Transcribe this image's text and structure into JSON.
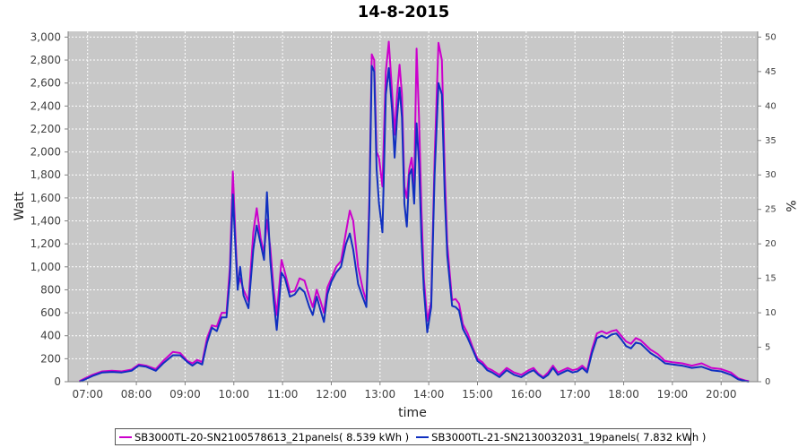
{
  "chart_data": {
    "type": "line",
    "title": "14-8-2015",
    "xlabel": "time",
    "ylabel": "Watt",
    "y2label": "%",
    "ylim": [
      0,
      3050
    ],
    "y2lim": [
      0,
      50.83
    ],
    "xlim": [
      6.6,
      20.75
    ],
    "yticks": [
      "0",
      "200",
      "400",
      "600",
      "800",
      "1,000",
      "1,200",
      "1,400",
      "1,600",
      "1,800",
      "2,000",
      "2,200",
      "2,400",
      "2,600",
      "2,800",
      "3,000"
    ],
    "ytick_values": [
      0,
      200,
      400,
      600,
      800,
      1000,
      1200,
      1400,
      1600,
      1800,
      2000,
      2200,
      2400,
      2600,
      2800,
      3000
    ],
    "y2ticks": [
      "0",
      "5",
      "10",
      "15",
      "20",
      "25",
      "30",
      "35",
      "40",
      "45",
      "50"
    ],
    "y2tick_values": [
      0,
      5,
      10,
      15,
      20,
      25,
      30,
      35,
      40,
      45,
      50
    ],
    "xticks": [
      "07:00",
      "08:00",
      "09:00",
      "10:00",
      "11:00",
      "12:00",
      "13:00",
      "14:00",
      "15:00",
      "16:00",
      "17:00",
      "18:00",
      "19:00",
      "20:00"
    ],
    "xtick_values": [
      7,
      8,
      9,
      10,
      11,
      12,
      13,
      14,
      15,
      16,
      17,
      18,
      19,
      20
    ],
    "grid": true,
    "legend_position": "bottom",
    "series": [
      {
        "name": "SB3000TL-20-SN2100578613_21panels( 8.539 kWh )",
        "color": "#cc00cc",
        "x": [
          6.83,
          6.95,
          7.1,
          7.3,
          7.5,
          7.7,
          7.9,
          8.05,
          8.2,
          8.4,
          8.55,
          8.75,
          8.9,
          9.05,
          9.15,
          9.25,
          9.35,
          9.45,
          9.55,
          9.65,
          9.75,
          9.85,
          9.92,
          9.98,
          10.03,
          10.08,
          10.13,
          10.2,
          10.3,
          10.4,
          10.47,
          10.55,
          10.62,
          10.68,
          10.75,
          10.82,
          10.88,
          10.93,
          10.98,
          11.05,
          11.15,
          11.25,
          11.35,
          11.45,
          11.55,
          11.62,
          11.7,
          11.78,
          11.85,
          11.92,
          12.0,
          12.1,
          12.2,
          12.3,
          12.38,
          12.45,
          12.55,
          12.65,
          12.72,
          12.78,
          12.83,
          12.88,
          12.93,
          12.98,
          13.05,
          13.12,
          13.18,
          13.25,
          13.3,
          13.35,
          13.4,
          13.45,
          13.5,
          13.55,
          13.6,
          13.65,
          13.7,
          13.75,
          13.8,
          13.85,
          13.9,
          13.97,
          14.05,
          14.12,
          14.2,
          14.27,
          14.33,
          14.38,
          14.43,
          14.48,
          14.55,
          14.62,
          14.7,
          14.8,
          14.9,
          15.0,
          15.1,
          15.2,
          15.3,
          15.45,
          15.6,
          15.75,
          15.9,
          16.05,
          16.15,
          16.25,
          16.35,
          16.45,
          16.55,
          16.65,
          16.75,
          16.85,
          16.95,
          17.05,
          17.15,
          17.25,
          17.35,
          17.45,
          17.55,
          17.65,
          17.75,
          17.85,
          17.95,
          18.05,
          18.15,
          18.25,
          18.35,
          18.45,
          18.55,
          18.7,
          18.85,
          19.0,
          19.2,
          19.4,
          19.6,
          19.8,
          20.0,
          20.2,
          20.35,
          20.5,
          20.57
        ],
        "y": [
          5,
          30,
          60,
          90,
          95,
          90,
          105,
          150,
          140,
          110,
          180,
          260,
          250,
          180,
          160,
          190,
          170,
          380,
          490,
          480,
          600,
          600,
          1000,
          1830,
          1300,
          830,
          900,
          800,
          700,
          1300,
          1510,
          1250,
          1120,
          1410,
          1160,
          800,
          580,
          820,
          1060,
          950,
          780,
          790,
          900,
          880,
          740,
          650,
          800,
          700,
          600,
          820,
          900,
          1000,
          1050,
          1300,
          1490,
          1400,
          1000,
          800,
          700,
          1600,
          2850,
          2800,
          2000,
          1950,
          1700,
          2700,
          2960,
          2500,
          2150,
          2500,
          2760,
          2500,
          1700,
          1600,
          1850,
          1950,
          1700,
          2900,
          2300,
          1500,
          900,
          530,
          700,
          1950,
          2950,
          2800,
          1800,
          1200,
          950,
          710,
          720,
          680,
          500,
          420,
          300,
          200,
          170,
          120,
          100,
          60,
          120,
          80,
          60,
          100,
          120,
          70,
          40,
          80,
          140,
          80,
          100,
          120,
          100,
          110,
          140,
          100,
          280,
          420,
          440,
          420,
          440,
          450,
          400,
          350,
          330,
          380,
          360,
          320,
          280,
          240,
          180,
          170,
          160,
          140,
          160,
          120,
          110,
          80,
          30,
          10,
          5
        ]
      },
      {
        "name": "SB3000TL-21-SN2130032031_19panels( 7.832 kWh )",
        "color": "#1030c0",
        "x": [
          6.83,
          6.95,
          7.1,
          7.3,
          7.5,
          7.7,
          7.9,
          8.05,
          8.2,
          8.4,
          8.55,
          8.75,
          8.9,
          9.05,
          9.15,
          9.25,
          9.35,
          9.45,
          9.55,
          9.65,
          9.75,
          9.85,
          9.92,
          9.98,
          10.03,
          10.08,
          10.13,
          10.2,
          10.3,
          10.4,
          10.47,
          10.55,
          10.62,
          10.68,
          10.75,
          10.82,
          10.88,
          10.93,
          10.98,
          11.05,
          11.15,
          11.25,
          11.35,
          11.45,
          11.55,
          11.62,
          11.7,
          11.78,
          11.85,
          11.92,
          12.0,
          12.1,
          12.2,
          12.3,
          12.38,
          12.45,
          12.55,
          12.65,
          12.72,
          12.78,
          12.83,
          12.88,
          12.93,
          12.98,
          13.05,
          13.12,
          13.18,
          13.25,
          13.3,
          13.35,
          13.4,
          13.45,
          13.5,
          13.55,
          13.6,
          13.65,
          13.7,
          13.75,
          13.8,
          13.85,
          13.9,
          13.97,
          14.05,
          14.12,
          14.2,
          14.27,
          14.33,
          14.38,
          14.43,
          14.48,
          14.55,
          14.62,
          14.7,
          14.8,
          14.9,
          15.0,
          15.1,
          15.2,
          15.3,
          15.45,
          15.6,
          15.75,
          15.9,
          16.05,
          16.15,
          16.25,
          16.35,
          16.45,
          16.55,
          16.65,
          16.75,
          16.85,
          16.95,
          17.05,
          17.15,
          17.25,
          17.35,
          17.45,
          17.55,
          17.65,
          17.75,
          17.85,
          17.95,
          18.05,
          18.15,
          18.25,
          18.35,
          18.45,
          18.55,
          18.7,
          18.85,
          19.0,
          19.2,
          19.4,
          19.6,
          19.8,
          20.0,
          20.2,
          20.35,
          20.5,
          20.57
        ],
        "y": [
          0,
          20,
          50,
          80,
          85,
          80,
          95,
          140,
          130,
          95,
          160,
          230,
          230,
          170,
          140,
          170,
          150,
          340,
          470,
          440,
          560,
          560,
          900,
          1630,
          1200,
          800,
          1000,
          750,
          640,
          1150,
          1360,
          1200,
          1060,
          1650,
          1050,
          700,
          450,
          700,
          950,
          900,
          740,
          760,
          820,
          780,
          650,
          580,
          740,
          620,
          520,
          760,
          870,
          950,
          1000,
          1200,
          1290,
          1150,
          850,
          730,
          650,
          1500,
          2750,
          2700,
          1850,
          1550,
          1300,
          2500,
          2730,
          2350,
          1950,
          2300,
          2560,
          2300,
          1550,
          1350,
          1800,
          1850,
          1550,
          2250,
          1900,
          1250,
          800,
          430,
          650,
          1800,
          2600,
          2500,
          1600,
          1100,
          880,
          660,
          650,
          620,
          460,
          380,
          280,
          180,
          150,
          100,
          80,
          40,
          100,
          60,
          40,
          80,
          100,
          60,
          30,
          60,
          120,
          60,
          80,
          100,
          80,
          90,
          120,
          80,
          250,
          380,
          400,
          380,
          410,
          420,
          370,
          310,
          290,
          340,
          330,
          290,
          250,
          210,
          160,
          150,
          140,
          120,
          130,
          100,
          90,
          60,
          20,
          5,
          0
        ]
      }
    ]
  }
}
